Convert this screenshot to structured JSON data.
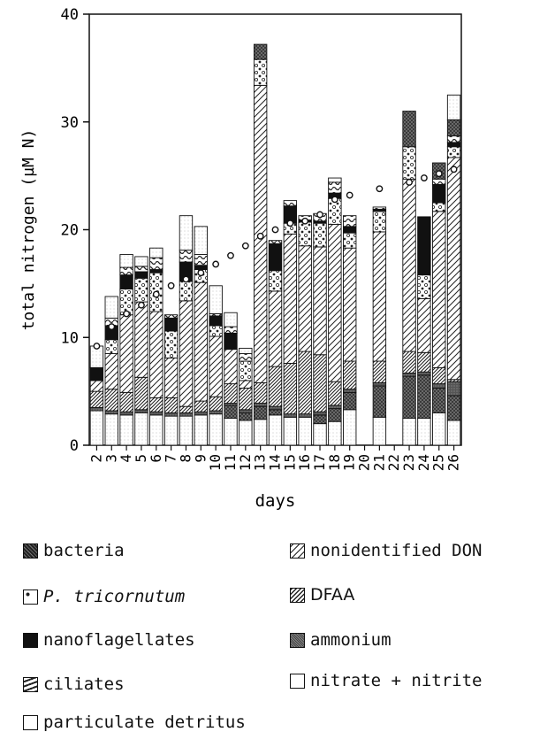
{
  "chart_data": {
    "type": "bar",
    "stacked": true,
    "xlabel": "days",
    "ylabel": "total nitrogen (µM N)",
    "ylim": [
      0,
      40
    ],
    "yticks": [
      0,
      10,
      20,
      30,
      40
    ],
    "categories": [
      "2",
      "3",
      "4",
      "5",
      "6",
      "7",
      "8",
      "9",
      "10",
      "11",
      "12",
      "13",
      "14",
      "15",
      "16",
      "17",
      "18",
      "19",
      "20",
      "21",
      "22",
      "23",
      "24",
      "25",
      "26"
    ],
    "series": [
      {
        "name": "particulate detritus",
        "color": "#ffffff",
        "pattern": "dots",
        "values": [
          3.2,
          2.9,
          2.8,
          3.0,
          2.8,
          2.7,
          2.7,
          2.8,
          2.9,
          2.5,
          2.3,
          2.4,
          2.8,
          2.6,
          2.6,
          2.0,
          2.2,
          3.3,
          0,
          2.6,
          0,
          2.5,
          2.5,
          3.0,
          2.3
        ]
      },
      {
        "name": "bacteria",
        "color": "#222222",
        "pattern": "cross",
        "values": [
          0,
          0,
          0,
          0,
          0,
          0,
          0,
          0,
          0,
          1.2,
          0.7,
          1.2,
          0.5,
          0,
          0,
          0.8,
          1.2,
          1.6,
          0,
          2.9,
          0,
          3.9,
          4.0,
          2.3,
          2.3
        ]
      },
      {
        "name": "ammonium",
        "color": "#444444",
        "pattern": "dense",
        "values": [
          0.3,
          0.3,
          0.3,
          0.3,
          0.3,
          0.3,
          0.3,
          0.3,
          0.3,
          0.2,
          0.3,
          0.3,
          0.3,
          0.3,
          0.3,
          0.3,
          0.3,
          0.3,
          0,
          0.3,
          0,
          0.3,
          0.3,
          0.4,
          1.3
        ]
      },
      {
        "name": "DFAA",
        "color": "#888888",
        "pattern": "diag-dense",
        "values": [
          1.5,
          2.0,
          1.8,
          3.0,
          1.3,
          1.4,
          0.6,
          1.0,
          1.3,
          1.8,
          2.0,
          1.9,
          3.7,
          4.7,
          5.8,
          5.3,
          2.2,
          2.6,
          0,
          2.0,
          0,
          2.0,
          1.8,
          1.5,
          0.2
        ]
      },
      {
        "name": "nonidentified DON",
        "color": "#ffffff",
        "pattern": "diag",
        "values": [
          1.0,
          3.3,
          7.2,
          7.0,
          8.0,
          3.7,
          9.8,
          11.0,
          5.6,
          3.2,
          0.7,
          27.6,
          7.0,
          12.0,
          9.8,
          10.0,
          14.6,
          10.5,
          0,
          12.0,
          0,
          16.0,
          5.0,
          14.5,
          20.6
        ]
      },
      {
        "name": "nitrate + nitrite",
        "color": "#ffffff",
        "pattern": "none",
        "values": [
          0,
          0,
          0,
          0,
          0,
          0,
          0,
          0,
          0,
          0,
          0,
          0,
          0,
          0,
          0,
          0,
          0,
          0,
          0,
          0,
          0,
          0,
          0,
          0,
          0
        ]
      },
      {
        "name": "P. tricornutum",
        "color": "#ffffff",
        "pattern": "bubbles",
        "values": [
          0,
          1.3,
          2.4,
          2.2,
          3.6,
          2.5,
          1.8,
          1.2,
          1.0,
          0,
          1.8,
          2.4,
          1.9,
          1.0,
          2.2,
          2.2,
          2.4,
          1.4,
          0,
          1.9,
          0,
          3.0,
          2.2,
          0.8,
          1.0
        ]
      },
      {
        "name": "nanoflagellates",
        "color": "#111111",
        "pattern": "solid",
        "values": [
          1.2,
          1.3,
          1.3,
          0.6,
          0.3,
          1.2,
          1.8,
          0.4,
          0.9,
          1.5,
          0,
          0,
          2.5,
          1.6,
          0.2,
          0.2,
          0.5,
          0.6,
          0,
          0.2,
          0,
          0,
          5.4,
          1.7,
          0.4
        ]
      },
      {
        "name": "ciliates",
        "color": "#ffffff",
        "pattern": "wavy",
        "values": [
          0,
          0.7,
          0.7,
          0.5,
          1.1,
          0.3,
          1.1,
          1.0,
          0.2,
          0.6,
          0.7,
          0,
          0.3,
          0.5,
          0.4,
          0.7,
          1.0,
          1.0,
          0,
          0.2,
          0,
          0,
          0,
          0.5,
          0.6
        ]
      },
      {
        "name": "bacteria",
        "color": "#222222",
        "pattern": "cross",
        "values": [
          0,
          0,
          0,
          0,
          0,
          0,
          0,
          0,
          0,
          0,
          0,
          1.4,
          0,
          0,
          0,
          0,
          0,
          0,
          0,
          0,
          0,
          3.3,
          0,
          1.5,
          1.5
        ]
      },
      {
        "name": "particulate detritus",
        "color": "#ffffff",
        "pattern": "dots",
        "values": [
          2.0,
          2.0,
          1.2,
          0.9,
          0.9,
          0,
          3.2,
          2.6,
          2.6,
          1.3,
          0.5,
          0,
          0,
          0,
          0,
          0,
          0.4,
          0,
          0,
          0,
          0,
          0,
          0,
          0,
          2.3
        ]
      }
    ],
    "circles": {
      "name": "total nitrogen",
      "values": [
        9.2,
        11.0,
        12.2,
        13.0,
        14.0,
        14.8,
        15.4,
        16.0,
        16.8,
        17.6,
        18.5,
        19.4,
        20.0,
        20.6,
        20.8,
        21.4,
        22.8,
        23.2,
        0,
        23.8,
        0,
        24.4,
        24.8,
        25.2,
        25.6
      ]
    }
  },
  "legend": {
    "left": [
      "bacteria",
      "P. tricornutum",
      "nanoflagellates",
      "ciliates",
      "particulate detritus"
    ],
    "right": [
      "nonidentified DON",
      "DFAA",
      "ammonium",
      "nitrate + nitrite"
    ]
  }
}
